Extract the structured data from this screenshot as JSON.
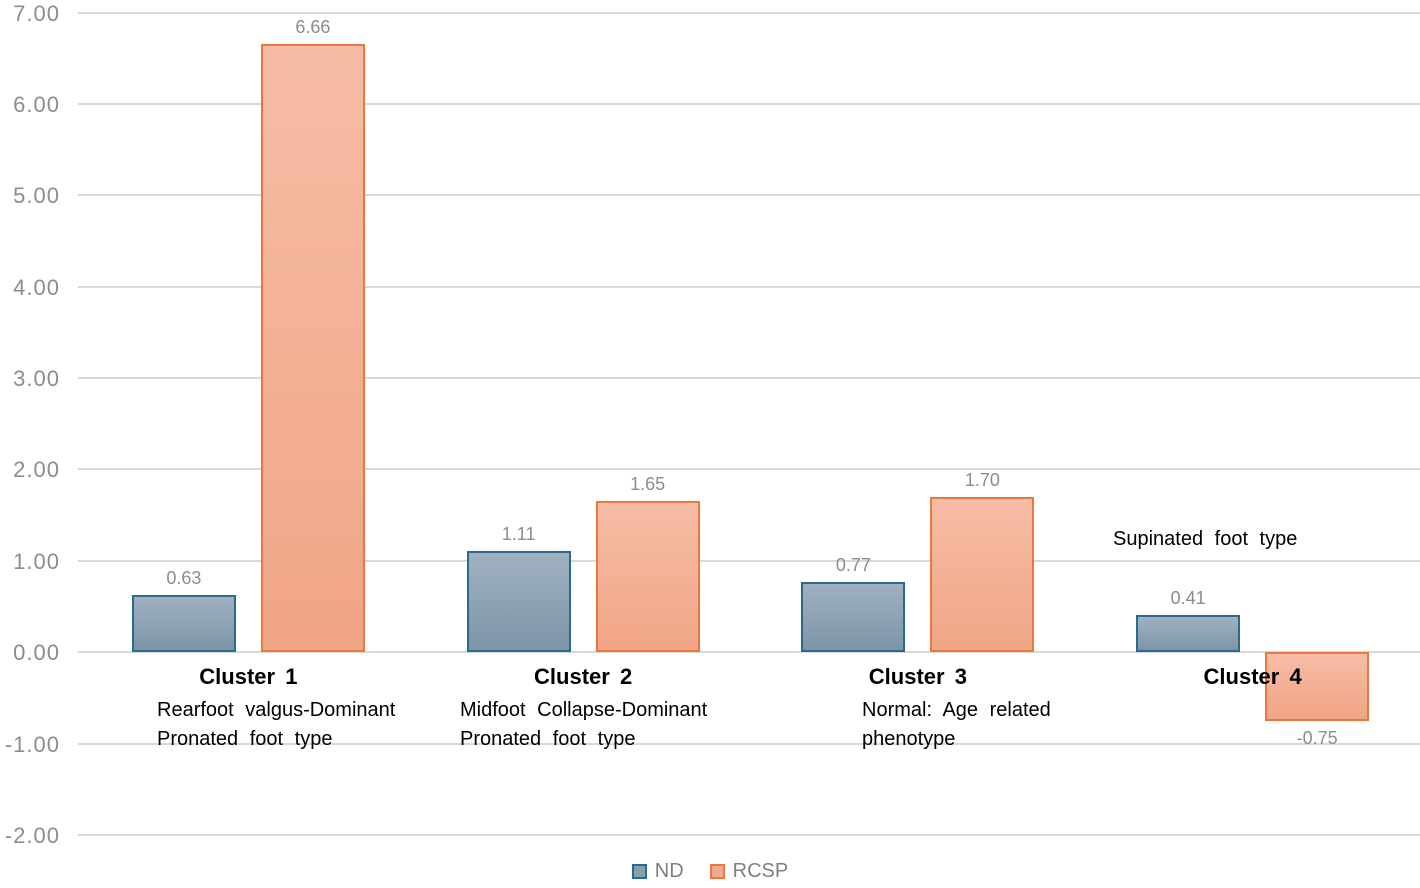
{
  "chart_data": {
    "type": "bar",
    "title": "",
    "xlabel": "",
    "ylabel": "",
    "categories": [
      "Cluster 1",
      "Cluster 2",
      "Cluster 3",
      "Cluster 4"
    ],
    "category_descriptions": [
      [
        "Rearfoot valgus-Dominant",
        "Pronated foot type"
      ],
      [
        "Midfoot Collapse-Dominant",
        "Pronated foot type"
      ],
      [
        "Normal: Age related",
        "phenotype"
      ],
      []
    ],
    "annotation": "Supinated foot type",
    "series": [
      {
        "name": "ND",
        "values": [
          0.63,
          1.11,
          0.77,
          0.41
        ]
      },
      {
        "name": "RCSP",
        "values": [
          6.66,
          1.65,
          1.7,
          -0.75
        ]
      }
    ],
    "value_labels": {
      "ND": [
        "0.63",
        "1.11",
        "0.77",
        "0.41"
      ],
      "RCSP": [
        "6.66",
        "1.65",
        "1.70",
        "-0.75"
      ]
    },
    "ylim": [
      -2,
      7
    ],
    "ytick_step": 1,
    "ytick_labels": [
      "7.00",
      "6.00",
      "5.00",
      "4.00",
      "3.00",
      "2.00",
      "1.00",
      "0.00",
      "-1.00",
      "-2.00"
    ],
    "grid": true,
    "legend_position": "bottom-center",
    "colors": {
      "nd_fill_top": "#A0B1C0",
      "nd_fill_bottom": "#7D95A9",
      "nd_border": "#2B6A8F",
      "rcsp_fill_top": "#F7BCA6",
      "rcsp_fill_bottom": "#F0A585",
      "rcsp_border": "#E8793B",
      "gridline": "#D9D9D9",
      "axis_text": "#8C8C8C",
      "value_text": "#8C8C8C",
      "category_text": "#000000",
      "legend_text": "#7F7F7F",
      "background": "#FFFFFF"
    }
  }
}
